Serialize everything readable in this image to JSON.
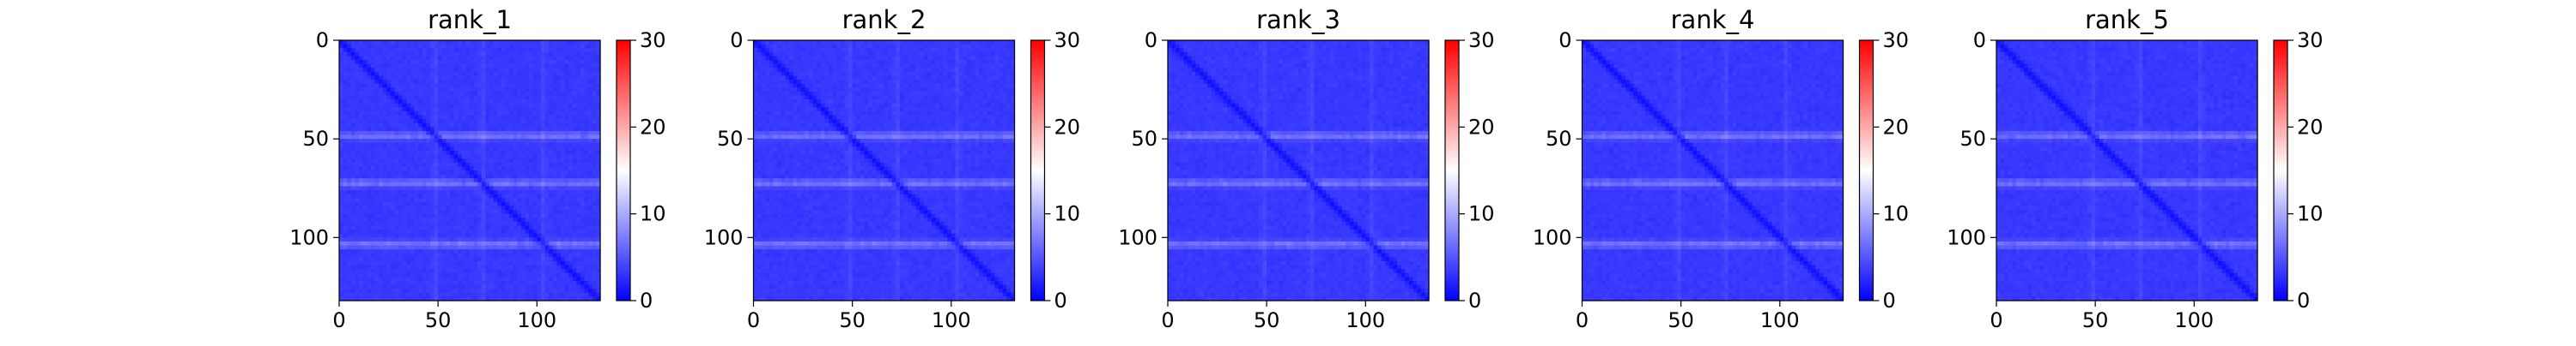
{
  "chart_data": [
    {
      "type": "heatmap",
      "title": "rank_1",
      "n": 132,
      "xlim": [
        0,
        132
      ],
      "ylim": [
        132,
        0
      ],
      "y_inverted": true,
      "x_ticks": [
        0,
        50,
        100
      ],
      "y_ticks": [
        0,
        50,
        100
      ],
      "colorbar": {
        "range": [
          0,
          30
        ],
        "ticks": [
          0,
          10,
          20,
          30
        ],
        "cmap": "bwr"
      },
      "bright_bands": [
        48,
        72,
        103
      ],
      "colors": {
        "low": "#0000ff",
        "mid": "#ffffff",
        "high": "#ff0000"
      }
    },
    {
      "type": "heatmap",
      "title": "rank_2",
      "n": 132,
      "xlim": [
        0,
        132
      ],
      "ylim": [
        132,
        0
      ],
      "y_inverted": true,
      "x_ticks": [
        0,
        50,
        100
      ],
      "y_ticks": [
        0,
        50,
        100
      ],
      "colorbar": {
        "range": [
          0,
          30
        ],
        "ticks": [
          0,
          10,
          20,
          30
        ],
        "cmap": "bwr"
      },
      "bright_bands": [
        48,
        72,
        103
      ],
      "colors": {
        "low": "#0000ff",
        "mid": "#ffffff",
        "high": "#ff0000"
      }
    },
    {
      "type": "heatmap",
      "title": "rank_3",
      "n": 132,
      "xlim": [
        0,
        132
      ],
      "ylim": [
        132,
        0
      ],
      "y_inverted": true,
      "x_ticks": [
        0,
        50,
        100
      ],
      "y_ticks": [
        0,
        50,
        100
      ],
      "colorbar": {
        "range": [
          0,
          30
        ],
        "ticks": [
          0,
          10,
          20,
          30
        ],
        "cmap": "bwr"
      },
      "bright_bands": [
        48,
        72,
        103
      ],
      "colors": {
        "low": "#0000ff",
        "mid": "#ffffff",
        "high": "#ff0000"
      }
    },
    {
      "type": "heatmap",
      "title": "rank_4",
      "n": 132,
      "xlim": [
        0,
        132
      ],
      "ylim": [
        132,
        0
      ],
      "y_inverted": true,
      "x_ticks": [
        0,
        50,
        100
      ],
      "y_ticks": [
        0,
        50,
        100
      ],
      "colorbar": {
        "range": [
          0,
          30
        ],
        "ticks": [
          0,
          10,
          20,
          30
        ],
        "cmap": "bwr"
      },
      "bright_bands": [
        48,
        72,
        103
      ],
      "colors": {
        "low": "#0000ff",
        "mid": "#ffffff",
        "high": "#ff0000"
      }
    },
    {
      "type": "heatmap",
      "title": "rank_5",
      "n": 132,
      "xlim": [
        0,
        132
      ],
      "ylim": [
        132,
        0
      ],
      "y_inverted": true,
      "x_ticks": [
        0,
        50,
        100
      ],
      "y_ticks": [
        0,
        50,
        100
      ],
      "colorbar": {
        "range": [
          0,
          30
        ],
        "ticks": [
          0,
          10,
          20,
          30
        ],
        "cmap": "bwr"
      },
      "bright_bands": [
        48,
        72,
        103
      ],
      "colors": {
        "low": "#0000ff",
        "mid": "#ffffff",
        "high": "#ff0000"
      }
    }
  ]
}
